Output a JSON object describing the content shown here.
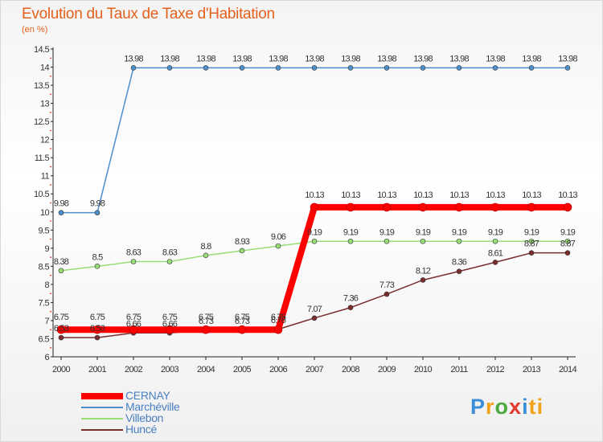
{
  "header": {
    "title": "Evolution du Taux de Taxe d'Habitation",
    "unit": "(en %)"
  },
  "brand": {
    "logo_text": "Proxiti",
    "letters": [
      "P",
      "r",
      "o",
      "x",
      "i",
      "ti"
    ]
  },
  "chart_data": {
    "type": "line",
    "title": "Evolution du Taux de Taxe d'Habitation",
    "ylabel": "(en %)",
    "xlabel": "",
    "x": [
      "2000",
      "2001",
      "2002",
      "2003",
      "2004",
      "2005",
      "2006",
      "2007",
      "2008",
      "2009",
      "2010",
      "2011",
      "2012",
      "2013",
      "2014"
    ],
    "ylim": [
      6,
      14.5
    ],
    "y_ticks": [
      "6",
      "6.5",
      "7",
      "7.5",
      "8",
      "8.5",
      "9",
      "9.5",
      "10",
      "10.5",
      "11",
      "11.5",
      "12",
      "12.5",
      "13",
      "13.5",
      "14",
      "14.5"
    ],
    "grid": false,
    "legend_position": "bottom-left",
    "series": [
      {
        "name": "CERNAY",
        "color": "#ff0000",
        "values": [
          6.75,
          6.75,
          6.75,
          6.75,
          6.75,
          6.75,
          6.75,
          10.13,
          10.13,
          10.13,
          10.13,
          10.13,
          10.13,
          10.13,
          10.13
        ],
        "labels": [
          "6.75",
          "6.75",
          "6.75",
          "6.75",
          "6.75",
          "6.75",
          "6.75",
          "10.13",
          "10.13",
          "10.13",
          "10.13",
          "10.13",
          "10.13",
          "10.13",
          "10.13"
        ]
      },
      {
        "name": "Marchéville",
        "color": "#4d8fca",
        "values": [
          9.98,
          9.98,
          13.98,
          13.98,
          13.98,
          13.98,
          13.98,
          13.98,
          13.98,
          13.98,
          13.98,
          13.98,
          13.98,
          13.98,
          13.98
        ],
        "labels": [
          "9.98",
          "9.98",
          "13.98",
          "13.98",
          "13.98",
          "13.98",
          "13.98",
          "13.98",
          "13.98",
          "13.98",
          "13.98",
          "13.98",
          "13.98",
          "13.98",
          "13.98"
        ]
      },
      {
        "name": "Villebon",
        "color": "#99dd77",
        "values": [
          8.38,
          8.5,
          8.63,
          8.63,
          8.8,
          8.93,
          9.06,
          9.19,
          9.19,
          9.19,
          9.19,
          9.19,
          9.19,
          9.19,
          9.19
        ],
        "labels": [
          "8.38",
          "8.5",
          "8.63",
          "8.63",
          "8.8",
          "8.93",
          "9.06",
          "9.19",
          "9.19",
          "9.19",
          "9.19",
          "9.19",
          "9.19",
          "9.19",
          "9.19"
        ]
      },
      {
        "name": "Huncé",
        "color": "#7a2d2d",
        "values": [
          6.53,
          6.53,
          6.66,
          6.66,
          6.73,
          6.73,
          6.76,
          7.07,
          7.36,
          7.73,
          8.12,
          8.36,
          8.61,
          8.87,
          8.87
        ],
        "labels": [
          "6.53",
          "6.53",
          "6.66",
          "6.66",
          "6.73",
          "6.73",
          "6.76",
          "7.07",
          "7.36",
          "7.73",
          "8.12",
          "8.36",
          "8.61",
          "8.87",
          "8.87"
        ]
      }
    ]
  }
}
